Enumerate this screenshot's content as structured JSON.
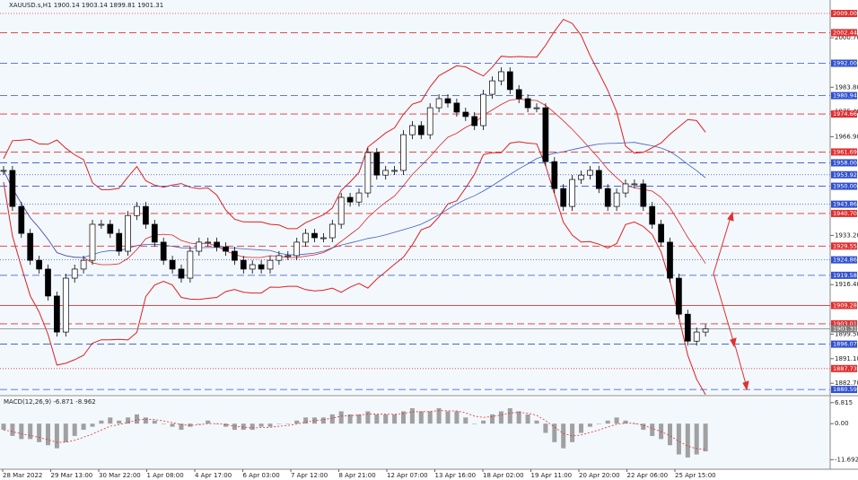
{
  "chart_data": [
    {
      "type": "candlestick",
      "title": "XAUUSD.s,H1  1900.14 1903.14 1899.81 1901.31",
      "values": [
        1955.4,
        1943.1,
        1933.9,
        1924.7,
        1921.7,
        1912.5,
        1900.2,
        1918.6,
        1921.7,
        1924.7,
        1937.0,
        1937.0,
        1933.9,
        1927.8,
        1940.0,
        1943.1,
        1937.0,
        1930.9,
        1924.7,
        1921.7,
        1918.6,
        1927.8,
        1930.9,
        1930.9,
        1929.3,
        1927.8,
        1924.7,
        1921.7,
        1923.2,
        1921.7,
        1924.7,
        1926.3,
        1926.3,
        1930.9,
        1933.9,
        1932.4,
        1932.4,
        1937.0,
        1946.2,
        1944.6,
        1947.7,
        1961.5,
        1953.8,
        1955.4,
        1955.4,
        1967.6,
        1970.7,
        1967.6,
        1976.8,
        1979.9,
        1978.4,
        1975.3,
        1973.8,
        1970.7,
        1981.4,
        1986.0,
        1989.1,
        1983.0,
        1979.9,
        1976.8,
        1976.8,
        1958.4,
        1949.2,
        1943.1,
        1952.3,
        1953.8,
        1955.4,
        1949.2,
        1943.1,
        1947.7,
        1950.8,
        1950.8,
        1943.1,
        1937.0,
        1930.9,
        1918.6,
        1906.3,
        1897.1,
        1900.2,
        1901.31
      ],
      "x_labels": [
        "28 Mar 2022",
        "29 Mar 13:00",
        "30 Mar 22:00",
        "1 Apr 08:00",
        "4 Apr 17:00",
        "6 Apr 03:00",
        "7 Apr 12:00",
        "8 Apr 21:00",
        "12 Apr 07:00",
        "13 Apr 16:00",
        "18 Apr 02:00",
        "19 Apr 11:00",
        "20 Apr 20:00",
        "22 Apr 06:00",
        "25 Apr 15:00"
      ],
      "ylim": [
        1879.7,
        2013.6
      ],
      "yticks": [
        {
          "value": 2000.7,
          "label": "2000.70"
        },
        {
          "value": 1983.8,
          "label": "1983.80"
        },
        {
          "value": 1975.4,
          "label": "1975.40"
        },
        {
          "value": 1966.9,
          "label": "1966.90"
        },
        {
          "value": 1933.2,
          "label": "1933.20"
        },
        {
          "value": 1916.4,
          "label": "1916.40"
        },
        {
          "value": 1899.5,
          "label": "1899.50"
        },
        {
          "value": 1891.1,
          "label": "1891.10"
        },
        {
          "value": 1882.7,
          "label": "1882.70"
        }
      ],
      "levels": [
        {
          "value": 2009.0,
          "label": "2009.00",
          "color": "#e03030",
          "style": "dotted"
        },
        {
          "value": 2002.44,
          "label": "2002.44",
          "color": "#e03030",
          "style": "dashed"
        },
        {
          "value": 1992.0,
          "label": "1992.00",
          "color": "#3050d0",
          "style": "dashed"
        },
        {
          "value": 1980.94,
          "label": "1980.94",
          "color": "#3050d0",
          "style": "dashed"
        },
        {
          "value": 1974.66,
          "label": "1974.66",
          "color": "#e03030",
          "style": "dashed"
        },
        {
          "value": 1961.69,
          "label": "1961.69",
          "color": "#e03030",
          "style": "dashed"
        },
        {
          "value": 1958.0,
          "label": "1958.00",
          "color": "#3050d0",
          "style": "dashed"
        },
        {
          "value": 1953.92,
          "label": "1953.92",
          "color": "#3050d0",
          "style": "dotted"
        },
        {
          "value": 1950.0,
          "label": "1950.00",
          "color": "#3050d0",
          "style": "dashed"
        },
        {
          "value": 1943.86,
          "label": "1943.86",
          "color": "#3050d0",
          "style": "dotted"
        },
        {
          "value": 1940.7,
          "label": "1940.70",
          "color": "#e03030",
          "style": "dashed"
        },
        {
          "value": 1929.55,
          "label": "1929.55",
          "color": "#e03030",
          "style": "dashed"
        },
        {
          "value": 1924.86,
          "label": "1924.86",
          "color": "#3050d0",
          "style": "dotted"
        },
        {
          "value": 1919.58,
          "label": "1919.58",
          "color": "#3050d0",
          "style": "dashed"
        },
        {
          "value": 1909.28,
          "label": "1909.28",
          "color": "#e03030",
          "style": "solid"
        },
        {
          "value": 1903.01,
          "label": "1903.01",
          "color": "#e03030",
          "style": "dashed"
        },
        {
          "value": 1901.31,
          "label": "1901.31",
          "color": "#808080",
          "style": "solid"
        },
        {
          "value": 1896.07,
          "label": "1896.07",
          "color": "#3050d0",
          "style": "dashed"
        },
        {
          "value": 1887.73,
          "label": "1887.73",
          "color": "#e03030",
          "style": "dotted"
        },
        {
          "value": 1880.59,
          "label": "1880.59",
          "color": "#3050d0",
          "style": "dashed"
        }
      ]
    },
    {
      "type": "bar",
      "title": "MACD(12,26,9) -6.871 -8.962",
      "values": [
        -2,
        -4,
        -5,
        -5,
        -6,
        -7,
        -8,
        -6,
        -4,
        -2,
        -1,
        1,
        2,
        1,
        2,
        3,
        2,
        1,
        0,
        -1,
        -2,
        -1,
        0,
        1,
        0,
        -1,
        -2,
        -2,
        -2,
        -1,
        -1,
        0,
        0,
        1,
        2,
        2,
        2,
        3,
        4,
        3,
        3,
        4,
        3,
        3,
        3,
        4,
        5,
        4,
        4,
        5,
        4,
        4,
        2,
        0,
        1,
        3,
        4,
        5,
        4,
        3,
        1,
        -3,
        -6,
        -8,
        -6,
        -3,
        -1,
        0,
        1,
        2,
        1,
        0,
        -2,
        -4,
        -5,
        -7,
        -10,
        -11,
        -10,
        -9
      ],
      "color": "#a0a0a0",
      "ylim": [
        -14.8,
        8.5
      ],
      "yticks": [
        6.815,
        {
          "value": 0,
          "label": "0.00"
        },
        -11.692
      ]
    }
  ]
}
